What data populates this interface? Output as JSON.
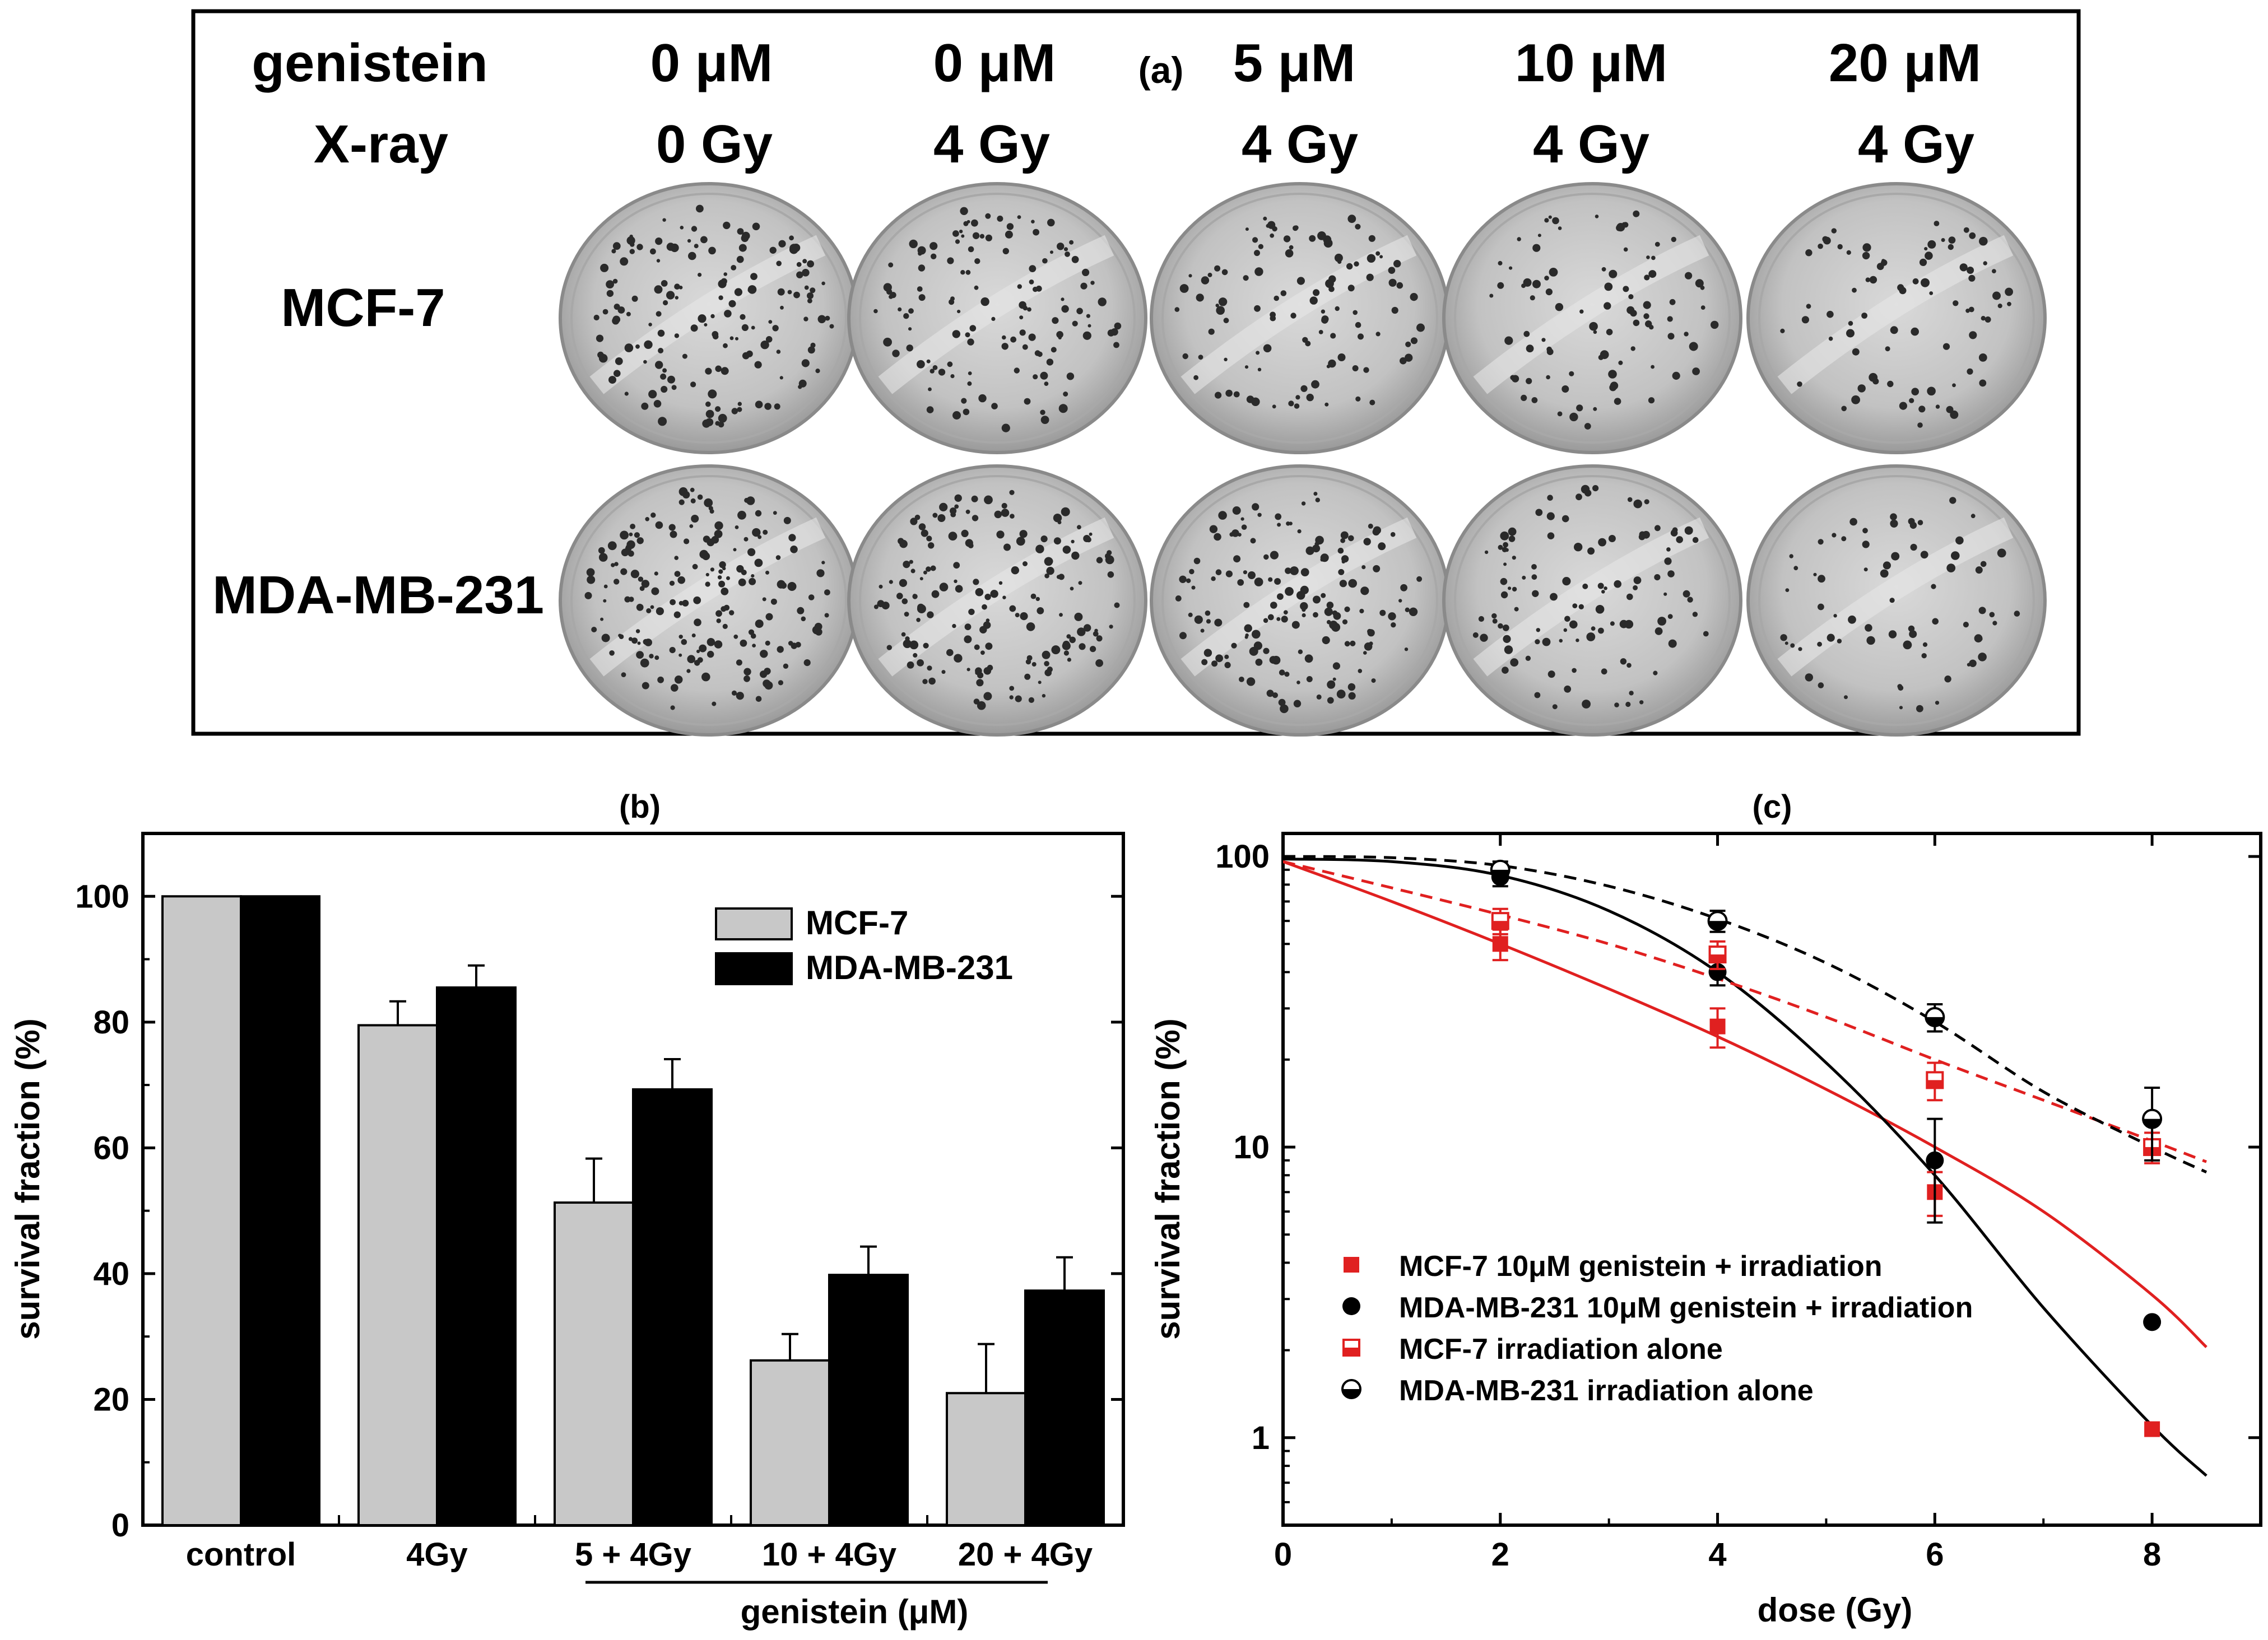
{
  "figure": {
    "panel_a": {
      "label": "(a)",
      "row_header_genistein": "genistein",
      "row_header_xray": "X-ray",
      "columns": [
        {
          "genistein": "0 μM",
          "xray": "0 Gy"
        },
        {
          "genistein": "0 μM",
          "xray": "4 Gy"
        },
        {
          "genistein": "5 μM",
          "xray": "4 Gy"
        },
        {
          "genistein": "10 μM",
          "xray": "4 Gy"
        },
        {
          "genistein": "20 μM",
          "xray": "4 Gy"
        }
      ],
      "rows": [
        "MCF-7",
        "MDA-MB-231"
      ]
    }
  },
  "colors": {
    "gray_bar": "#c8c8c8",
    "black_bar": "#000000",
    "red": "#e02020",
    "dish": "#bdbdbd"
  },
  "chart_data": [
    {
      "id": "b",
      "type": "bar",
      "title": "(b)",
      "categories": [
        "control",
        "4Gy",
        "5 + 4Gy",
        "10 + 4Gy",
        "20 + 4Gy"
      ],
      "group_label": "genistein (μM)",
      "series": [
        {
          "name": "MCF-7",
          "values": [
            100,
            79.5,
            51.3,
            26.2,
            21
          ],
          "errors": [
            0,
            3.8,
            7,
            4.2,
            7.8
          ],
          "color": "#c8c8c8"
        },
        {
          "name": "MDA-MB-231",
          "values": [
            100,
            85.5,
            69.3,
            39.8,
            37.3
          ],
          "errors": [
            0,
            3.5,
            4.8,
            4.5,
            5.3
          ],
          "color": "#000000"
        }
      ],
      "xlabel": "",
      "ylabel": "survival fraction (%)",
      "ylim": [
        0,
        110
      ],
      "yticks": [
        0,
        20,
        40,
        60,
        80,
        100
      ],
      "legend": "top-right"
    },
    {
      "id": "c",
      "type": "scatter",
      "title": "(c)",
      "xlabel": "dose (Gy)",
      "ylabel": "survival fraction (%)",
      "xlim": [
        0,
        9
      ],
      "ylim": [
        0.5,
        120
      ],
      "yscale": "log",
      "xticks": [
        0,
        2,
        4,
        6,
        8
      ],
      "yticks": [
        1,
        10,
        100
      ],
      "legend": "bottom-left",
      "series": [
        {
          "name": "MCF-7  10μM genistein + irradiation",
          "marker": "square-filled",
          "color": "#e02020",
          "x": [
            2,
            4,
            6,
            8
          ],
          "y": [
            50,
            26,
            7,
            1.07
          ],
          "err": [
            6,
            4,
            1.2,
            0
          ],
          "fit": {
            "style": "solid",
            "x": [
              0,
              1,
              2,
              3,
              4,
              5,
              6,
              7,
              8,
              8.5
            ],
            "y": [
              96,
              70,
              50,
              35,
              24,
              15.8,
              10,
              6,
              3.1,
              2.05
            ]
          }
        },
        {
          "name": "MDA-MB-231 10μM genistein + irradiation",
          "marker": "circle-filled",
          "color": "#000000",
          "x": [
            2,
            4,
            6,
            8
          ],
          "y": [
            85,
            40,
            9,
            2.5
          ],
          "err": [
            6,
            4,
            3.5,
            0
          ],
          "fit": {
            "style": "solid",
            "x": [
              0,
              1,
              2,
              3,
              4,
              5,
              6,
              7,
              8,
              8.5
            ],
            "y": [
              98,
              96,
              86,
              65,
              40,
              19.5,
              8,
              2.8,
              1.1,
              0.74
            ]
          }
        },
        {
          "name": "MCF-7   irradiation alone",
          "marker": "square-half",
          "color": "#e02020",
          "x": [
            2,
            4,
            6,
            8
          ],
          "y": [
            60,
            46,
            17,
            10
          ],
          "err": [
            6,
            5,
            2.5,
            1.2
          ],
          "fit": {
            "style": "dashed",
            "x": [
              0,
              1,
              2,
              3,
              4,
              5,
              6,
              7,
              8,
              8.5
            ],
            "y": [
              96,
              78,
              63,
              50,
              38,
              28,
              20,
              14.5,
              10.5,
              8.9
            ]
          }
        },
        {
          "name": "MDA-MB-231  irradiation alone",
          "marker": "circle-half",
          "color": "#000000",
          "x": [
            2,
            4,
            6,
            8
          ],
          "y": [
            90,
            60,
            28,
            12.5
          ],
          "err": [
            6,
            5,
            3,
            3.5
          ],
          "fit": {
            "style": "dashed",
            "x": [
              0,
              1,
              2,
              3,
              4,
              5,
              6,
              7,
              8,
              8.5
            ],
            "y": [
              100,
              99,
              93,
              79,
              61,
              43,
              27,
              15.5,
              10,
              8.2
            ]
          }
        }
      ]
    }
  ]
}
